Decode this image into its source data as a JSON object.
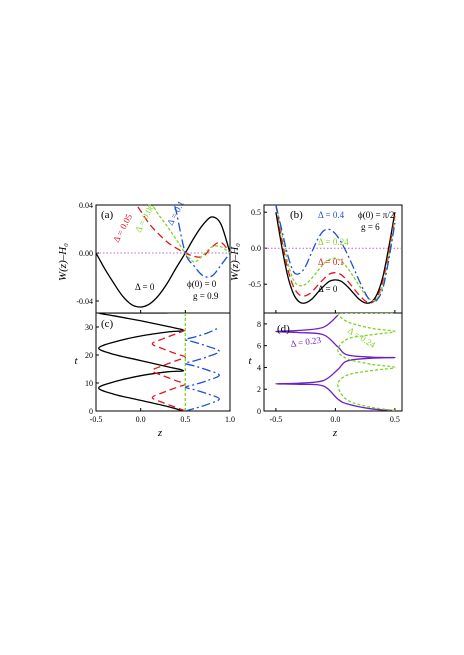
{
  "colors": {
    "black": "#000000",
    "red": "#e4121b",
    "green": "#7ed321",
    "blue": "#1d4fd8",
    "purple": "#6a1fc9",
    "ref": "#c060e0"
  },
  "chart_data": [
    {
      "id": "a",
      "type": "line",
      "panel_label": "(a)",
      "xlabel": "",
      "ylabel": "W(z)–H₀",
      "xlim": [
        -0.5,
        1.0
      ],
      "ylim": [
        -0.05,
        0.04
      ],
      "yticks": [
        -0.04,
        0.0,
        0.04
      ],
      "ytick_labels": [
        "-0.04",
        "0.00",
        "0.04"
      ],
      "params": [
        "ϕ(0) = 0",
        "g = 0.9"
      ],
      "reference_line": 0,
      "series": [
        {
          "name": "Δ = 0",
          "color": "black",
          "dash": "",
          "x": [
            -0.5,
            -0.4,
            -0.3,
            -0.2,
            -0.1,
            0.0,
            0.1,
            0.2,
            0.3,
            0.4,
            0.5,
            0.6,
            0.7,
            0.8,
            0.9,
            1.0
          ],
          "y": [
            0.0,
            -0.0134,
            -0.0253,
            -0.0361,
            -0.0431,
            -0.045,
            -0.0424,
            -0.0355,
            -0.0249,
            -0.0121,
            0.0,
            0.013,
            0.0238,
            0.0301,
            0.0238,
            0.0
          ]
        },
        {
          "name": "Δ = 0.05",
          "color": "red",
          "dash": "7 4",
          "x": [
            -0.1,
            0.0,
            0.1,
            0.2,
            0.3,
            0.4,
            0.5,
            0.6,
            0.7,
            0.8,
            0.9,
            1.0
          ],
          "y": [
            0.046,
            0.035,
            0.024,
            0.016,
            0.009,
            0.004,
            0.0,
            -0.0028,
            -0.0028,
            0.0052,
            0.0088,
            0.0
          ]
        },
        {
          "name": "Δ = 0.08",
          "color": "green",
          "dash": "3 2",
          "x": [
            0.15,
            0.2,
            0.3,
            0.4,
            0.5,
            0.6,
            0.7,
            0.8,
            0.9,
            1.0
          ],
          "y": [
            0.038,
            0.032,
            0.022,
            0.011,
            0.0,
            -0.0075,
            -0.0015,
            0.0052,
            0.0052,
            0.0
          ]
        },
        {
          "name": "Δ = 0.1",
          "color": "blue",
          "dash": "9 3 2 3",
          "x": [
            0.38,
            0.4,
            0.5,
            0.6,
            0.7,
            0.8,
            0.9,
            1.0
          ],
          "y": [
            0.039,
            0.034,
            0.0,
            -0.011,
            -0.019,
            -0.019,
            -0.01,
            0.0
          ]
        }
      ],
      "labels": [
        "Δ = 0",
        "Δ = 0.05",
        "Δ = 0.08",
        "Δ = 0.1"
      ]
    },
    {
      "id": "b",
      "type": "line",
      "panel_label": "(b)",
      "xlabel": "",
      "ylabel": "W(z)–H₀",
      "xlim": [
        -0.6,
        0.56
      ],
      "ylim": [
        -0.9,
        0.6
      ],
      "yticks": [
        -0.5,
        0.0,
        0.5
      ],
      "ytick_labels": [
        "-0.5",
        "0.0",
        "0.5"
      ],
      "params": [
        "ϕ(0) = π/2",
        "g = 6"
      ],
      "reference_line": 0,
      "series": [
        {
          "name": "Δ = 0",
          "color": "black",
          "dash": "",
          "x": [
            -0.5,
            -0.45,
            -0.4,
            -0.35,
            -0.3,
            -0.25,
            -0.2,
            -0.15,
            -0.1,
            -0.05,
            0.0,
            0.05,
            0.1,
            0.15,
            0.2,
            0.25,
            0.3,
            0.35,
            0.4,
            0.45,
            0.5
          ],
          "y": [
            0.5,
            0.02,
            -0.39,
            -0.64,
            -0.75,
            -0.76,
            -0.71,
            -0.62,
            -0.53,
            -0.46,
            -0.44,
            -0.46,
            -0.53,
            -0.62,
            -0.71,
            -0.76,
            -0.75,
            -0.64,
            -0.39,
            0.02,
            0.5
          ]
        },
        {
          "name": "Δ = 0.1",
          "color": "red",
          "dash": "7 4",
          "x": [
            -0.5,
            -0.45,
            -0.4,
            -0.35,
            -0.3,
            -0.25,
            -0.2,
            -0.15,
            -0.1,
            -0.05,
            0.0,
            0.05,
            0.1,
            0.15,
            0.2,
            0.25,
            0.3,
            0.35,
            0.4,
            0.45,
            0.5
          ],
          "y": [
            0.6,
            0.12,
            -0.29,
            -0.54,
            -0.65,
            -0.66,
            -0.61,
            -0.52,
            -0.43,
            -0.36,
            -0.34,
            -0.37,
            -0.45,
            -0.55,
            -0.65,
            -0.73,
            -0.76,
            -0.68,
            -0.45,
            -0.05,
            0.45
          ]
        },
        {
          "name": "Δ = 0.24",
          "color": "green",
          "dash": "3 2",
          "x": [
            -0.5,
            -0.45,
            -0.4,
            -0.35,
            -0.3,
            -0.25,
            -0.2,
            -0.15,
            -0.1,
            -0.05,
            0.0,
            0.05,
            0.1,
            0.15,
            0.2,
            0.25,
            0.3,
            0.35,
            0.4,
            0.45,
            0.5
          ],
          "y": [
            0.6,
            0.2,
            -0.2,
            -0.45,
            -0.52,
            -0.5,
            -0.42,
            -0.32,
            -0.22,
            -0.16,
            -0.14,
            -0.18,
            -0.27,
            -0.39,
            -0.52,
            -0.64,
            -0.72,
            -0.7,
            -0.5,
            -0.1,
            0.4
          ]
        },
        {
          "name": "Δ = 0.4",
          "color": "blue",
          "dash": "9 3 2 3",
          "x": [
            -0.5,
            -0.45,
            -0.4,
            -0.35,
            -0.3,
            -0.25,
            -0.2,
            -0.15,
            -0.1,
            -0.05,
            0.0,
            0.05,
            0.1,
            0.15,
            0.2,
            0.25,
            0.3,
            0.35,
            0.4,
            0.45,
            0.5
          ],
          "y": [
            0.6,
            0.25,
            -0.1,
            -0.33,
            -0.35,
            -0.25,
            -0.06,
            0.12,
            0.24,
            0.26,
            0.2,
            0.08,
            -0.08,
            -0.26,
            -0.45,
            -0.62,
            -0.74,
            -0.72,
            -0.55,
            -0.15,
            0.35
          ]
        }
      ],
      "labels": [
        "Δ = 0",
        "Δ = 0.1",
        "Δ = 0.24",
        "Δ = 0.4"
      ]
    },
    {
      "id": "c",
      "type": "line",
      "panel_label": "(c)",
      "xlabel": "z",
      "ylabel": "t",
      "xlim": [
        -0.5,
        1.0
      ],
      "ylim": [
        0,
        35
      ],
      "xticks": [
        -0.5,
        0.0,
        0.5,
        1.0
      ],
      "xtick_labels": [
        "-0.5",
        "0.0",
        "0.5",
        "1.0"
      ],
      "yticks": [
        0,
        10,
        20,
        30
      ],
      "ytick_labels": [
        "0",
        "10",
        "20",
        "30"
      ],
      "series": [
        {
          "name": "Δ = 0",
          "color": "black",
          "dash": "",
          "x": [
            0.48,
            0.3,
            0.0,
            -0.3,
            -0.47,
            -0.3,
            0.0,
            0.3,
            0.48,
            0.3,
            0.0,
            -0.3,
            -0.47,
            -0.3,
            0.0,
            0.3,
            0.48,
            0.3,
            0.0,
            -0.3,
            -0.47,
            -0.3,
            0.0,
            0.3
          ],
          "y": [
            0,
            1.6,
            3.8,
            6.0,
            8.2,
            10.4,
            12.6,
            14.0,
            14.4,
            15.8,
            18.0,
            20.2,
            22.4,
            24.6,
            26.8,
            28.2,
            28.8,
            30.2,
            32.2,
            34.0,
            35,
            35,
            35,
            35
          ]
        },
        {
          "name": "Δ = 0.05",
          "color": "red",
          "dash": "7 4",
          "x": [
            0.5,
            0.4,
            0.25,
            0.13,
            0.25,
            0.4,
            0.5,
            0.4,
            0.25,
            0.13,
            0.25,
            0.4,
            0.5,
            0.4,
            0.25,
            0.13,
            0.25,
            0.4,
            0.5
          ],
          "y": [
            0,
            1.2,
            3.0,
            4.8,
            6.6,
            8.4,
            9.6,
            10.8,
            12.6,
            14.4,
            16.2,
            18.0,
            19.2,
            20.4,
            22.2,
            24.0,
            25.8,
            27.6,
            28.8
          ]
        },
        {
          "name": "Δ = 0.08",
          "color": "green",
          "dash": "3 2",
          "x": [
            0.5,
            0.5,
            0.5,
            0.5
          ],
          "y": [
            0,
            10,
            20,
            35
          ]
        },
        {
          "name": "Δ = 0.1",
          "color": "blue",
          "dash": "9 3 2 3",
          "x": [
            0.5,
            0.6,
            0.75,
            0.88,
            0.75,
            0.6,
            0.5,
            0.6,
            0.75,
            0.88,
            0.75,
            0.6,
            0.5,
            0.6,
            0.75,
            0.88,
            0.75,
            0.6,
            0.5,
            0.6,
            0.75,
            0.88
          ],
          "y": [
            0,
            0.9,
            2.4,
            4.3,
            6.1,
            7.6,
            8.5,
            9.4,
            10.9,
            12.8,
            14.6,
            16.1,
            17.0,
            17.9,
            19.4,
            21.3,
            23.1,
            24.6,
            25.5,
            26.4,
            27.9,
            29.8
          ]
        }
      ]
    },
    {
      "id": "d",
      "type": "line",
      "panel_label": "(d)",
      "xlabel": "z",
      "ylabel": "t",
      "xlim": [
        -0.6,
        0.56
      ],
      "ylim": [
        0,
        9
      ],
      "xticks": [
        -0.5,
        0.0,
        0.5
      ],
      "xtick_labels": [
        "-0.5",
        "0.0",
        "0.5"
      ],
      "yticks": [
        0,
        2,
        4,
        6,
        8
      ],
      "ytick_labels": [
        "0",
        "2",
        "4",
        "6",
        "8"
      ],
      "series": [
        {
          "name": "Δ = 0.23",
          "color": "purple",
          "dash": "",
          "x": [
            0.5,
            0.3,
            0.1,
            0.02,
            -0.1,
            -0.3,
            -0.5,
            -0.3,
            -0.1,
            0.02,
            0.1,
            0.3,
            0.5,
            0.3,
            0.1,
            0.02,
            -0.1,
            -0.3,
            -0.5,
            -0.3,
            -0.1,
            0.02
          ],
          "y": [
            0.05,
            0.2,
            0.65,
            1.1,
            2.3,
            2.45,
            2.5,
            2.55,
            2.8,
            3.8,
            4.6,
            4.85,
            4.9,
            4.95,
            5.15,
            5.9,
            7.0,
            7.2,
            7.3,
            7.4,
            7.7,
            8.8
          ]
        },
        {
          "name": "Δ = 0.24",
          "color": "green",
          "dash": "3 2",
          "x": [
            0.5,
            0.3,
            0.1,
            0.02,
            0.1,
            0.3,
            0.5,
            0.3,
            0.1,
            0.02,
            0.1,
            0.3,
            0.5,
            0.3,
            0.1,
            0.02,
            0.1,
            0.3,
            0.5
          ],
          "y": [
            0.05,
            0.35,
            1.0,
            2.4,
            3.3,
            3.7,
            4.0,
            4.3,
            4.8,
            5.6,
            6.6,
            7.0,
            7.3,
            7.6,
            8.2,
            9,
            9,
            9,
            9
          ]
        }
      ]
    }
  ],
  "curve_labels": {
    "a": [
      {
        "text": "Δ = 0",
        "color": "black"
      },
      {
        "text": "Δ = 0.05",
        "color": "red"
      },
      {
        "text": "Δ = 0.08",
        "color": "green"
      },
      {
        "text": "Δ = 0.1",
        "color": "blue"
      }
    ],
    "b": [
      {
        "text": "Δ = 0.4",
        "color": "blue"
      },
      {
        "text": "Δ = 0.24",
        "color": "green"
      },
      {
        "text": "Δ = 0.1",
        "color": "red"
      },
      {
        "text": "Δ = 0",
        "color": "black"
      }
    ],
    "d": [
      {
        "text": "Δ = 0.23",
        "color": "purple"
      },
      {
        "text": "Δ = 0.24",
        "color": "green"
      }
    ]
  }
}
